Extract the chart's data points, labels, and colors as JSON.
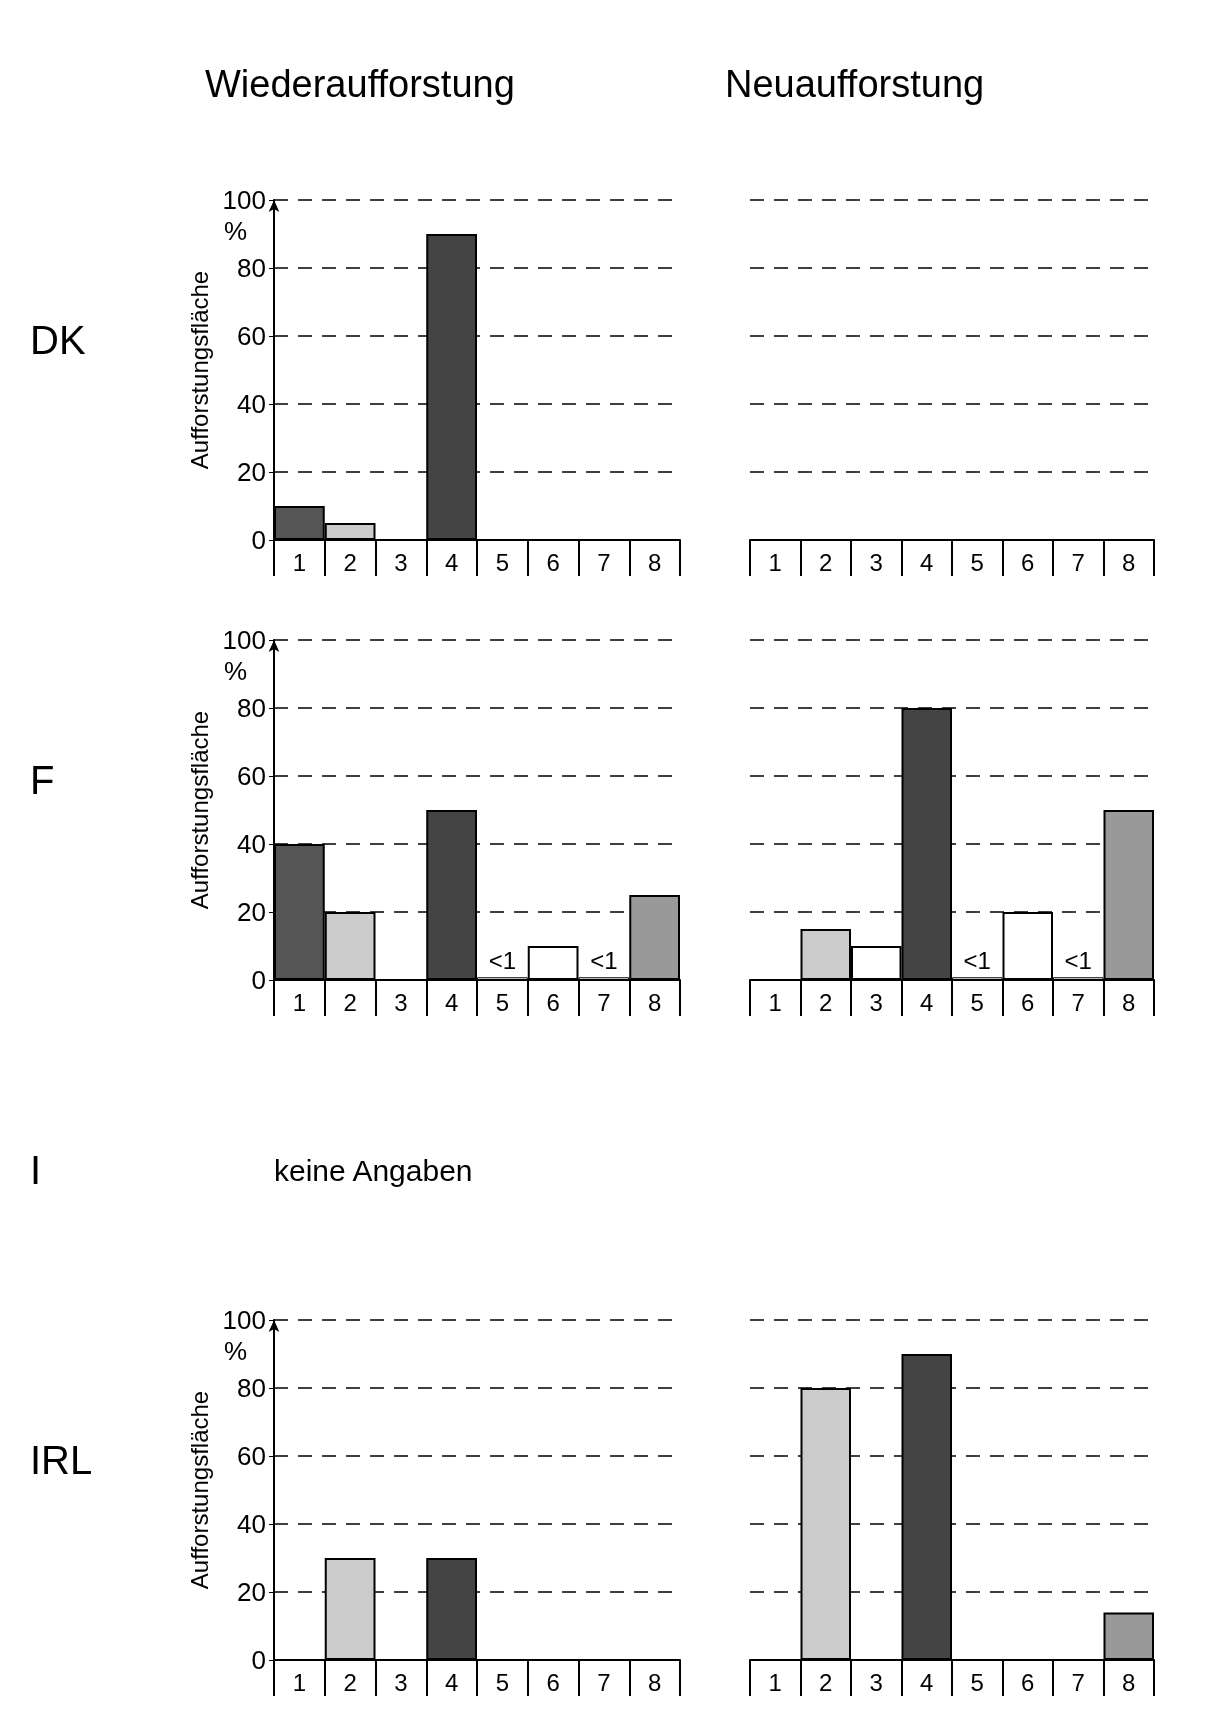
{
  "chart_data": [
    {
      "type": "bar",
      "title": "Wiederaufforstung",
      "ylabel": "Aufforstungsfläche",
      "annotations": [
        "DK",
        "%"
      ],
      "categories": [
        "1",
        "2",
        "3",
        "4",
        "5",
        "6",
        "7",
        "8"
      ],
      "values": [
        10,
        5,
        null,
        90,
        null,
        null,
        null,
        null
      ],
      "colors": [
        "#555555",
        "#cccccc",
        "#ffffff",
        "#444444",
        "#ffffff",
        "#ffffff",
        "#ffffff",
        "#999999"
      ],
      "ylim": [
        0,
        100
      ],
      "yticks": [
        0,
        20,
        40,
        60,
        80,
        100
      ],
      "grid": "y"
    },
    {
      "type": "bar",
      "title": "Neuaufforstung",
      "categories": [
        "1",
        "2",
        "3",
        "4",
        "5",
        "6",
        "7",
        "8"
      ],
      "values": [
        null,
        null,
        null,
        null,
        null,
        null,
        null,
        null
      ],
      "colors": [
        "#555555",
        "#cccccc",
        "#ffffff",
        "#444444",
        "#ffffff",
        "#ffffff",
        "#ffffff",
        "#999999"
      ],
      "ylim": [
        0,
        100
      ],
      "yticks": [
        0,
        20,
        40,
        60,
        80,
        100
      ],
      "grid": "y",
      "tick_labels": "x"
    },
    {
      "type": "bar",
      "ylabel": "Aufforstungsfläche",
      "annotations": [
        "F",
        "%"
      ],
      "categories": [
        "1",
        "2",
        "3",
        "4",
        "5",
        "6",
        "7",
        "8"
      ],
      "values": [
        40,
        20,
        null,
        50,
        0.8,
        10,
        0.8,
        25
      ],
      "value_labels": [
        null,
        null,
        null,
        null,
        "<1",
        null,
        "<1",
        null
      ],
      "colors": [
        "#555555",
        "#cccccc",
        "#ffffff",
        "#444444",
        "#ffffff",
        "#ffffff",
        "#ffffff",
        "#999999"
      ],
      "ylim": [
        0,
        100
      ],
      "yticks": [
        0,
        20,
        40,
        60,
        80,
        100
      ],
      "grid": "y"
    },
    {
      "type": "bar",
      "categories": [
        "1",
        "2",
        "3",
        "4",
        "5",
        "6",
        "7",
        "8"
      ],
      "values": [
        null,
        15,
        10,
        80,
        0.8,
        20,
        0.8,
        50
      ],
      "value_labels": [
        null,
        null,
        null,
        null,
        "<1",
        null,
        "<1",
        null
      ],
      "colors": [
        "#555555",
        "#cccccc",
        "#ffffff",
        "#444444",
        "#ffffff",
        "#ffffff",
        "#ffffff",
        "#999999"
      ],
      "ylim": [
        0,
        100
      ],
      "yticks": [
        0,
        20,
        40,
        60,
        80,
        100
      ],
      "grid": "y",
      "tick_labels": "x"
    },
    {
      "type": "other",
      "annotations": [
        "I",
        "keine Angaben"
      ]
    },
    {
      "type": "bar",
      "ylabel": "Aufforstungsfläche",
      "annotations": [
        "IRL",
        "%"
      ],
      "categories": [
        "1",
        "2",
        "3",
        "4",
        "5",
        "6",
        "7",
        "8"
      ],
      "values": [
        null,
        30,
        null,
        30,
        null,
        null,
        null,
        null
      ],
      "colors": [
        "#555555",
        "#cccccc",
        "#ffffff",
        "#444444",
        "#ffffff",
        "#ffffff",
        "#ffffff",
        "#999999"
      ],
      "ylim": [
        0,
        100
      ],
      "yticks": [
        0,
        20,
        40,
        60,
        80,
        100
      ],
      "grid": "y"
    },
    {
      "type": "bar",
      "categories": [
        "1",
        "2",
        "3",
        "4",
        "5",
        "6",
        "7",
        "8"
      ],
      "values": [
        null,
        80,
        null,
        90,
        null,
        null,
        null,
        14
      ],
      "colors": [
        "#555555",
        "#cccccc",
        "#ffffff",
        "#444444",
        "#ffffff",
        "#ffffff",
        "#ffffff",
        "#999999"
      ],
      "ylim": [
        0,
        100
      ],
      "yticks": [
        0,
        20,
        40,
        60,
        80,
        100
      ],
      "grid": "y",
      "tick_labels": "x"
    }
  ]
}
